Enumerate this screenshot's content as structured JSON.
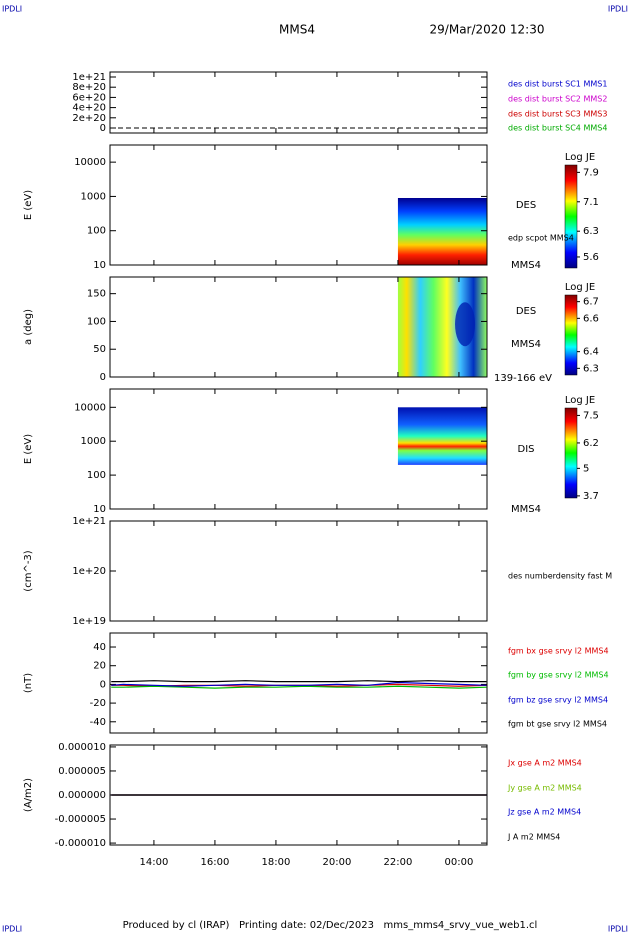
{
  "header": {
    "corner_left": "IPDLI",
    "corner_right": "IPDLI",
    "spacecraft": "MMS4",
    "date": "29/Mar/2020 12:30"
  },
  "footer": {
    "text": "Produced by cl (IRAP)   Printing date: 02/Dec/2023   mms_mms4_srvy_vue_web1.cl",
    "corner_left": "IPDLI",
    "corner_right": "IPDLI"
  },
  "chart_data": [
    {
      "type": "line",
      "ylim": [
        -9.8e+19,
        1.098e+21
      ],
      "yticks": [
        0,
        {
          "value": 2e+20,
          "label": "2e+20"
        },
        {
          "value": 4e+20,
          "label": "4e+20"
        },
        {
          "value": 6e+20,
          "label": "6e+20"
        },
        {
          "value": 8e+20,
          "label": "8e+20"
        },
        {
          "value": 1e+21,
          "label": "1e+21"
        }
      ],
      "series": [
        {
          "name": "des dist burst SC1 MMS1",
          "color": "#0000cc"
        },
        {
          "name": "des dist burst SC2 MMS2",
          "color": "#cc00cc"
        },
        {
          "name": "des dist burst SC3 MMS3",
          "color": "#cc0000"
        },
        {
          "name": "des dist burst SC4 MMS4",
          "color": "#00aa00"
        }
      ]
    },
    {
      "type": "spectrogram",
      "ylabel": "E (eV)",
      "log": true,
      "ylim": [
        10,
        31623
      ],
      "yticks": [
        10,
        100,
        1000,
        10000
      ],
      "time_range": [
        22,
        24.92
      ],
      "erange": [
        10,
        900
      ],
      "annotations": [
        "DES",
        "edp scpot MMS4",
        "MMS4"
      ],
      "colorbar": {
        "title": "Log JE",
        "clim": [
          5.3,
          8.1
        ],
        "ticks": [
          7.9,
          7.1,
          6.3,
          5.6
        ]
      }
    },
    {
      "type": "spectrogram",
      "ylabel": "a (deg)",
      "log": false,
      "ylim": [
        0,
        180
      ],
      "yticks": [
        0,
        50,
        100,
        150
      ],
      "time_range": [
        22,
        24.92
      ],
      "erange": [
        0,
        180
      ],
      "annotations": [
        "DES",
        "MMS4",
        "139-166 eV"
      ],
      "colorbar": {
        "title": "Log JE",
        "clim": [
          6.26,
          6.74
        ],
        "ticks": [
          6.7,
          6.6,
          6.4,
          6.3
        ]
      }
    },
    {
      "type": "spectrogram",
      "ylabel": "E (eV)",
      "log": true,
      "ylim": [
        10,
        34674
      ],
      "yticks": [
        10,
        100,
        1000,
        10000
      ],
      "time_range": [
        22,
        24.92
      ],
      "erange": [
        200,
        10000
      ],
      "annotations": [
        "DIS",
        "MMS4"
      ],
      "colorbar": {
        "title": "Log JE",
        "clim": [
          3.6,
          7.85
        ],
        "ticks": [
          7.5,
          6.2,
          5.0,
          3.7
        ]
      }
    },
    {
      "type": "line",
      "ylabel": "(cm^-3)",
      "log": true,
      "ylim": [
        1e+19,
        1e+21
      ],
      "yticks": [
        {
          "value": 1e+19,
          "label": "1e+19"
        },
        {
          "value": 1e+20,
          "label": "1e+20"
        },
        {
          "value": 1e+21,
          "label": "1e+21"
        }
      ],
      "annotations": [
        "des numberdensity fast M"
      ],
      "series": []
    },
    {
      "type": "line",
      "ylabel": "(nT)",
      "ylim": [
        -52,
        55
      ],
      "yticks": [
        -40,
        -20,
        0,
        20,
        40
      ],
      "x": [
        12.6,
        13,
        14,
        15,
        16,
        17,
        18,
        19,
        20,
        21,
        22,
        23,
        24,
        24.9
      ],
      "series": [
        {
          "name": "fgm bx gse srvy l2 MMS4",
          "color": "#dd0000",
          "values": [
            -1,
            -1,
            -2,
            -1,
            -1,
            -2,
            -1,
            -1,
            -2,
            -1,
            0,
            -1,
            -2,
            -1
          ]
        },
        {
          "name": "fgm by gse srvy l2 MMS4",
          "color": "#00bb00",
          "values": [
            -3,
            -3,
            -2,
            -3,
            -4,
            -3,
            -3,
            -2,
            -3,
            -3,
            -2,
            -3,
            -4,
            -3
          ]
        },
        {
          "name": "fgm bz gse srvy l2 MMS4",
          "color": "#0000cc",
          "values": [
            -1,
            0,
            -1,
            -2,
            -1,
            0,
            -1,
            -1,
            0,
            -1,
            2,
            1,
            0,
            -1
          ]
        },
        {
          "name": "fgm bt gse srvy l2 MMS4",
          "color": "#000000",
          "values": [
            3,
            3,
            4,
            3,
            3,
            4,
            3,
            3,
            3,
            4,
            3,
            4,
            3,
            3
          ]
        }
      ]
    },
    {
      "type": "line",
      "ylabel": "(A/m2)",
      "ylim": [
        -1.04e-05,
        1.04e-05
      ],
      "yticks": [
        {
          "value": -1e-05,
          "label": "-0.000010"
        },
        {
          "value": -5e-06,
          "label": "-0.000005"
        },
        {
          "value": 0,
          "label": "0.000000"
        },
        {
          "value": 5e-06,
          "label": "0.000005"
        },
        {
          "value": 1e-05,
          "label": "0.000010"
        }
      ],
      "x": [
        12.6,
        24.9
      ],
      "series": [
        {
          "name": "Jx gse A m2 MMS4",
          "color": "#dd0000",
          "values": [
            0,
            0
          ]
        },
        {
          "name": "Jy gse A m2 MMS4",
          "color": "#77bb00",
          "values": [
            0,
            0
          ]
        },
        {
          "name": "Jz gse A m2 MMS4",
          "color": "#0000cc",
          "values": [
            0,
            0
          ]
        },
        {
          "name": "J A m2 MMS4",
          "color": "#000000",
          "values": [
            0,
            0
          ]
        }
      ],
      "xlim": [
        12.56,
        24.92
      ],
      "xticks": [
        {
          "value": 14,
          "label": "14:00"
        },
        {
          "value": 16,
          "label": "16:00"
        },
        {
          "value": 18,
          "label": "18:00"
        },
        {
          "value": 20,
          "label": "20:00"
        },
        {
          "value": 22,
          "label": "22:00"
        },
        {
          "value": 24,
          "label": "00:00"
        }
      ]
    }
  ]
}
